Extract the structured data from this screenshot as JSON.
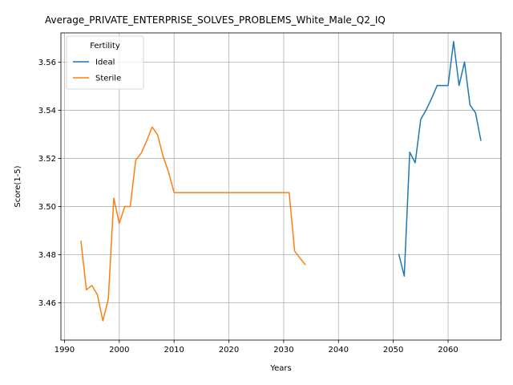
{
  "chart_data": {
    "type": "line",
    "title": "Average_PRIVATE_ENTERPRISE_SOLVES_PROBLEMS_White_Male_Q2_IQ",
    "xlabel": "Years",
    "ylabel": "Score(1-5)",
    "xlim": [
      1989.35,
      2069.65
    ],
    "ylim": [
      3.4445,
      3.5722
    ],
    "x_ticks": [
      1990,
      2000,
      2010,
      2020,
      2030,
      2040,
      2050,
      2060
    ],
    "y_ticks": [
      3.46,
      3.48,
      3.5,
      3.52,
      3.54,
      3.56
    ],
    "grid": true,
    "legend": {
      "title": "Fertility",
      "placement": "top-left"
    },
    "series": [
      {
        "name": "Ideal",
        "color": "#1f77b4",
        "x": [
          2051,
          2052,
          2053,
          2054,
          2055,
          2056,
          2057,
          2058,
          2059,
          2060,
          2061,
          2062,
          2063,
          2064,
          2065,
          2066
        ],
        "y": [
          3.4803,
          3.4711,
          3.5226,
          3.5182,
          3.5362,
          3.5402,
          3.545,
          3.5503,
          3.5503,
          3.5503,
          3.5686,
          3.5503,
          3.5601,
          3.5422,
          3.539,
          3.5273
        ]
      },
      {
        "name": "Sterile",
        "color": "#ff7f0e",
        "x": [
          1993,
          1994,
          1995,
          1996,
          1997,
          1998,
          1999,
          2000,
          2001,
          2002,
          2003,
          2004,
          2005,
          2006,
          2007,
          2008,
          2009,
          2010,
          2011,
          2012,
          2013,
          2014,
          2015,
          2016,
          2017,
          2018,
          2019,
          2020,
          2021,
          2022,
          2023,
          2024,
          2025,
          2026,
          2027,
          2028,
          2029,
          2030,
          2031,
          2032,
          2033,
          2034
        ],
        "y": [
          3.4858,
          3.4654,
          3.4672,
          3.4634,
          3.4525,
          3.4616,
          3.5035,
          3.493,
          3.5,
          3.5,
          3.5193,
          3.5222,
          3.5273,
          3.5331,
          3.5298,
          3.5208,
          3.5143,
          3.5058,
          3.5058,
          3.5058,
          3.5058,
          3.5058,
          3.5058,
          3.5058,
          3.5058,
          3.5058,
          3.5058,
          3.5058,
          3.5058,
          3.5058,
          3.5058,
          3.5058,
          3.5058,
          3.5058,
          3.5058,
          3.5058,
          3.5058,
          3.5058,
          3.5058,
          3.4815,
          3.4785,
          3.4757
        ]
      }
    ]
  }
}
